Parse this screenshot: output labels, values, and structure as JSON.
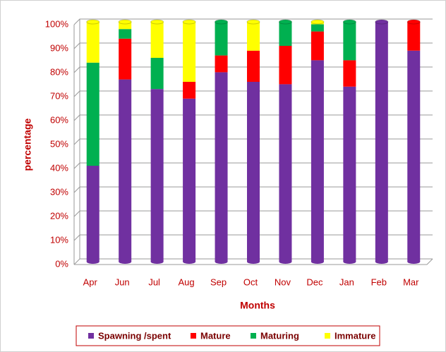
{
  "chart_data": {
    "type": "stacked_bar",
    "x_label": "Months",
    "y_label": "percentage",
    "categories": [
      "Apr",
      "Jun",
      "Jul",
      "Aug",
      "Sep",
      "Oct",
      "Nov",
      "Dec",
      "Jan",
      "Feb",
      "Mar"
    ],
    "series": [
      {
        "name": "Spawning /spent",
        "color": "#7030a0",
        "values": [
          40,
          76,
          72,
          68,
          79,
          75,
          74,
          84,
          73,
          100,
          88
        ]
      },
      {
        "name": "Mature",
        "color": "#ff0000",
        "values": [
          0,
          17,
          0,
          7,
          7,
          13,
          16,
          12,
          11,
          0,
          12
        ]
      },
      {
        "name": "Maturing",
        "color": "#00b050",
        "values": [
          43,
          4,
          13,
          0,
          14,
          0,
          10,
          3,
          16,
          0,
          0
        ]
      },
      {
        "name": "Immature",
        "color": "#ffff00",
        "values": [
          17,
          3,
          15,
          25,
          0,
          12,
          0,
          1,
          0,
          0,
          0
        ]
      }
    ],
    "ylim": [
      0,
      100
    ],
    "yticks": [
      {
        "value": 0,
        "label": "0%"
      },
      {
        "value": 10,
        "label": "10%"
      },
      {
        "value": 20,
        "label": "20%"
      },
      {
        "value": 30,
        "label": "30%"
      },
      {
        "value": 40,
        "label": "40%"
      },
      {
        "value": 50,
        "label": "50%"
      },
      {
        "value": 60,
        "label": "60%"
      },
      {
        "value": 70,
        "label": "70%"
      },
      {
        "value": 80,
        "label": "80%"
      },
      {
        "value": 90,
        "label": "90%"
      },
      {
        "value": 100,
        "label": "100%"
      }
    ],
    "grid": true,
    "legend": "bottom"
  }
}
